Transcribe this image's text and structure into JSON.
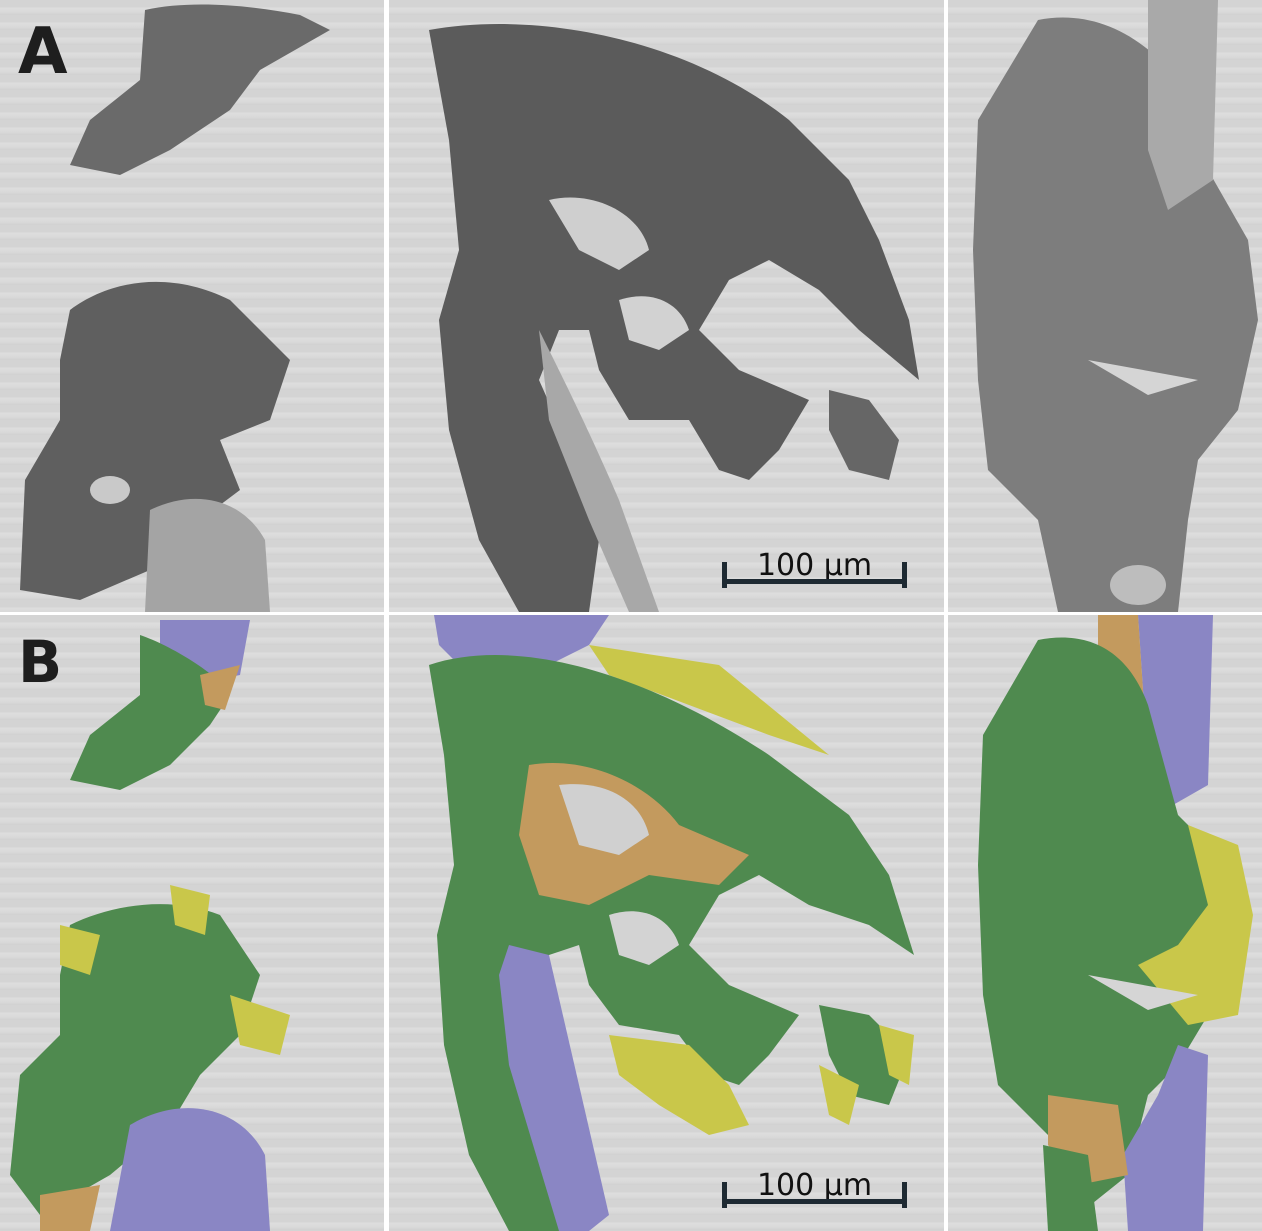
{
  "panels": [
    {
      "letter": "A",
      "scale_label": "100 µm"
    },
    {
      "letter": "B",
      "scale_label": "100 µm"
    }
  ],
  "colors": {
    "tissue_dark": "#5e5e5e",
    "tissue_mid": "#8a8a8a",
    "background": "#d6d6d6",
    "overlay_green": "#4f8a4f",
    "overlay_orange": "#c39a5e",
    "overlay_yellow": "#c9c74a",
    "overlay_purple": "#8a86c4"
  }
}
